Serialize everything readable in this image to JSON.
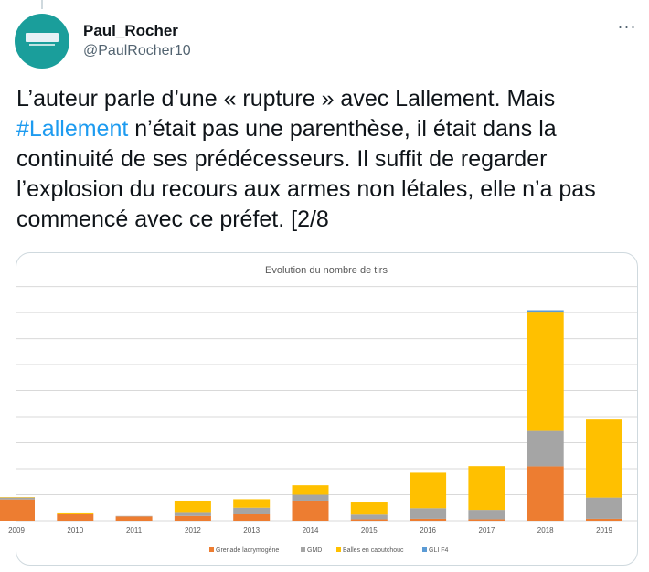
{
  "author": {
    "display_name": "Paul_Rocher",
    "handle": "@PaulRocher10"
  },
  "more_menu_label": "···",
  "tweet": {
    "text_part1": "L’auteur parle d’une « rupture » avec Lallement. Mais ",
    "hashtag": "#Lallement",
    "text_part2": " n’était pas une parenthèse, il était dans la continuité de ses prédécesseurs. Il suffit de regarder l’explosion du recours aux armes non létales, elle n’a pas commencé avec ce préfet. [2/8"
  },
  "colors": {
    "grenade": "#ed7d31",
    "gmd": "#a5a5a5",
    "balles": "#ffc000",
    "gli": "#5b9bd5",
    "grid": "#d9d9d9",
    "hashtag": "#1d9bf0"
  },
  "chart_data": {
    "type": "bar",
    "stacked": true,
    "title": "Evolution du nombre de tirs",
    "categories": [
      "2009",
      "2010",
      "2011",
      "2012",
      "2013",
      "2014",
      "2015",
      "2016",
      "2017",
      "2018",
      "2019"
    ],
    "series": [
      {
        "name": "Grenade lacrymogène",
        "color": "#ed7d31",
        "values": [
          900,
          280,
          180,
          200,
          300,
          850,
          60,
          80,
          60,
          2300,
          80
        ]
      },
      {
        "name": "GMD",
        "color": "#a5a5a5",
        "values": [
          80,
          30,
          20,
          170,
          250,
          250,
          200,
          450,
          400,
          1500,
          900
        ]
      },
      {
        "name": "Balles en caoutchouc",
        "color": "#ffc000",
        "values": [
          20,
          40,
          0,
          480,
          360,
          400,
          550,
          1500,
          1850,
          5000,
          3300
        ]
      },
      {
        "name": "GLI F4",
        "color": "#5b9bd5",
        "values": [
          0,
          0,
          0,
          0,
          0,
          0,
          0,
          0,
          0,
          100,
          0
        ]
      }
    ],
    "ylim": [
      0,
      10000
    ],
    "gridline_step": 1100,
    "grid": true,
    "legend_position": "bottom"
  }
}
